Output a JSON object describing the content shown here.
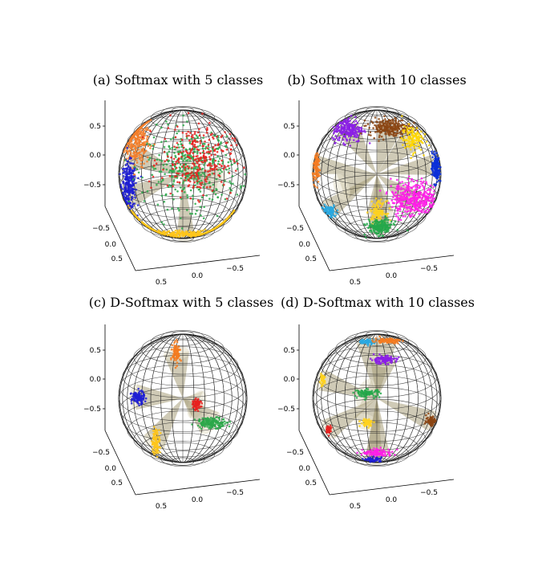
{
  "chart_data": [
    {
      "type": "scatter",
      "title": "(a) Softmax with 5 classes",
      "projection": "3d-sphere",
      "ticks": {
        "z": [
          "0.5",
          "0.0",
          "−0.5"
        ],
        "y": [
          "−0.5",
          "0.0",
          "0.5"
        ],
        "x": [
          "0.5",
          "0.0",
          "−0.5"
        ]
      },
      "cones": [
        {
          "u": -0.8,
          "v": 0.3,
          "z": 0.7
        },
        {
          "u": -0.85,
          "v": -0.35,
          "z": 0.55
        },
        {
          "u": 0.05,
          "v": -0.98,
          "z": 0.25
        },
        {
          "u": 0.15,
          "v": 0.1,
          "z": 0.98
        },
        {
          "u": 0.55,
          "v": -0.1,
          "z": 0.85
        }
      ],
      "series": [
        {
          "color": "#f37f2c",
          "center": [
            -0.72,
            0.52
          ],
          "spread": [
            0.1,
            0.2
          ],
          "n": 300,
          "arc": true
        },
        {
          "color": "#1f1fd4",
          "center": [
            -0.84,
            -0.18
          ],
          "spread": [
            0.06,
            0.18
          ],
          "n": 260,
          "arc": true
        },
        {
          "color": "#ffc61a",
          "center": [
            0.0,
            -0.93
          ],
          "spread": [
            0.55,
            0.03
          ],
          "n": 320,
          "arc": true
        },
        {
          "color": "#2ba84a",
          "center": [
            0.15,
            0.1
          ],
          "spread": [
            0.35,
            0.3
          ],
          "n": 420
        },
        {
          "color": "#e8211f",
          "center": [
            0.22,
            0.22
          ],
          "spread": [
            0.28,
            0.28
          ],
          "n": 300
        }
      ]
    },
    {
      "type": "scatter",
      "title": "(b) Softmax with 10 classes",
      "projection": "3d-sphere",
      "ticks": {
        "z": [
          "0.5",
          "0.0",
          "−0.5"
        ],
        "y": [
          "−0.5",
          "0.0",
          "0.5"
        ],
        "x": [
          "0.5",
          "0.0",
          "−0.5"
        ]
      },
      "cones": [
        {
          "u": -0.45,
          "v": 0.7,
          "z": 0.55
        },
        {
          "u": 0.2,
          "v": 0.72,
          "z": 0.66
        },
        {
          "u": 0.55,
          "v": 0.55,
          "z": 0.62
        },
        {
          "u": 0.9,
          "v": 0.15,
          "z": 0.4
        },
        {
          "u": -0.95,
          "v": 0.15,
          "z": 0.28
        },
        {
          "u": 0.6,
          "v": -0.45,
          "z": 0.66
        },
        {
          "u": -0.75,
          "v": -0.55,
          "z": 0.38
        },
        {
          "u": 0.05,
          "v": -0.6,
          "z": 0.8
        },
        {
          "u": 0.05,
          "v": -0.85,
          "z": 0.52
        },
        {
          "u": -0.55,
          "v": -0.2,
          "z": 0.81
        }
      ],
      "series": [
        {
          "color": "#8b1ee6",
          "center": [
            -0.45,
            0.7
          ],
          "spread": [
            0.12,
            0.1
          ],
          "n": 240
        },
        {
          "color": "#8b4513",
          "center": [
            0.2,
            0.73
          ],
          "spread": [
            0.16,
            0.07
          ],
          "n": 240
        },
        {
          "color": "#ffd700",
          "center": [
            0.55,
            0.55
          ],
          "spread": [
            0.08,
            0.1
          ],
          "n": 120
        },
        {
          "color": "#0a2fd8",
          "center": [
            0.92,
            0.1
          ],
          "spread": [
            0.03,
            0.12
          ],
          "n": 160
        },
        {
          "color": "#ff1fe8",
          "center": [
            0.58,
            -0.38
          ],
          "spread": [
            0.18,
            0.14
          ],
          "n": 420
        },
        {
          "color": "#f47b20",
          "center": [
            -0.94,
            0.12
          ],
          "spread": [
            0.03,
            0.12
          ],
          "n": 120
        },
        {
          "color": "#29a8e0",
          "center": [
            -0.75,
            -0.58
          ],
          "spread": [
            0.06,
            0.05
          ],
          "n": 90
        },
        {
          "color": "#ffd21f",
          "center": [
            0.02,
            -0.58
          ],
          "spread": [
            0.06,
            0.08
          ],
          "n": 120
        },
        {
          "color": "#24a84a",
          "center": [
            0.05,
            -0.82
          ],
          "spread": [
            0.1,
            0.06
          ],
          "n": 200
        },
        {
          "color": "#ffffff",
          "center": [
            -0.55,
            -0.2
          ],
          "spread": [
            0.01,
            0.01
          ],
          "n": 0
        }
      ]
    },
    {
      "type": "scatter",
      "title": "(c) D-Softmax with 5 classes",
      "projection": "3d-sphere",
      "ticks": {
        "z": [
          "0.5",
          "0.0",
          "−0.5"
        ],
        "y": [
          "−0.5",
          "0.0",
          "0.5"
        ],
        "x": [
          "0.5",
          "0.0",
          "−0.5"
        ]
      },
      "cones": [
        {
          "u": -0.1,
          "v": 0.7,
          "z": 0.7
        },
        {
          "u": -0.72,
          "v": 0.02,
          "z": 0.69
        },
        {
          "u": 0.22,
          "v": -0.1,
          "z": 0.97
        },
        {
          "u": 0.42,
          "v": -0.38,
          "z": 0.82
        },
        {
          "u": -0.45,
          "v": -0.68,
          "z": 0.58
        }
      ],
      "series": [
        {
          "color": "#f47b20",
          "center": [
            -0.1,
            0.7
          ],
          "spread": [
            0.03,
            0.08
          ],
          "n": 90
        },
        {
          "color": "#1f1fd4",
          "center": [
            -0.7,
            0.01
          ],
          "spread": [
            0.05,
            0.05
          ],
          "n": 110
        },
        {
          "color": "#e8211f",
          "center": [
            0.22,
            -0.1
          ],
          "spread": [
            0.03,
            0.04
          ],
          "n": 80
        },
        {
          "color": "#2ba84a",
          "center": [
            0.45,
            -0.38
          ],
          "spread": [
            0.12,
            0.04
          ],
          "n": 160
        },
        {
          "color": "#ffc61a",
          "center": [
            -0.42,
            -0.68
          ],
          "spread": [
            0.03,
            0.1
          ],
          "n": 110
        }
      ]
    },
    {
      "type": "scatter",
      "title": "(d) D-Softmax with 10 classes",
      "projection": "3d-sphere",
      "ticks": {
        "z": [
          "0.5",
          "0.0",
          "−0.5"
        ],
        "y": [
          "−0.5",
          "0.0",
          "0.5"
        ],
        "x": [
          "0.5",
          "0.0",
          "−0.5"
        ]
      },
      "cones": [
        {
          "u": -0.15,
          "v": 0.88,
          "z": 0.45
        },
        {
          "u": 0.15,
          "v": 0.9,
          "z": 0.4
        },
        {
          "u": 0.1,
          "v": 0.6,
          "z": 0.79
        },
        {
          "u": -0.85,
          "v": 0.28,
          "z": 0.45
        },
        {
          "u": -0.18,
          "v": 0.08,
          "z": 0.98
        },
        {
          "u": -0.15,
          "v": -0.38,
          "z": 0.91
        },
        {
          "u": 0.85,
          "v": -0.35,
          "z": 0.4
        },
        {
          "u": -0.75,
          "v": -0.48,
          "z": 0.45
        },
        {
          "u": 0.02,
          "v": -0.85,
          "z": 0.52
        },
        {
          "u": -0.05,
          "v": -0.97,
          "z": 0.24
        }
      ],
      "series": [
        {
          "color": "#29a8e0",
          "center": [
            -0.15,
            0.88
          ],
          "spread": [
            0.06,
            0.02
          ],
          "n": 70
        },
        {
          "color": "#f47b20",
          "center": [
            0.17,
            0.9
          ],
          "spread": [
            0.1,
            0.02
          ],
          "n": 90
        },
        {
          "color": "#8b1ee6",
          "center": [
            0.1,
            0.6
          ],
          "spread": [
            0.1,
            0.03
          ],
          "n": 120
        },
        {
          "color": "#ffd21f",
          "center": [
            -0.85,
            0.28
          ],
          "spread": [
            0.02,
            0.04
          ],
          "n": 40
        },
        {
          "color": "#24a84a",
          "center": [
            -0.15,
            0.08
          ],
          "spread": [
            0.1,
            0.03
          ],
          "n": 90
        },
        {
          "color": "#ffd21f",
          "center": [
            -0.15,
            -0.38
          ],
          "spread": [
            0.05,
            0.03
          ],
          "n": 60
        },
        {
          "color": "#8b4513",
          "center": [
            0.85,
            -0.35
          ],
          "spread": [
            0.04,
            0.04
          ],
          "n": 80
        },
        {
          "color": "#e8211f",
          "center": [
            -0.75,
            -0.48
          ],
          "spread": [
            0.02,
            0.03
          ],
          "n": 40
        },
        {
          "color": "#ff1fe8",
          "center": [
            0.02,
            -0.85
          ],
          "spread": [
            0.12,
            0.03
          ],
          "n": 110
        },
        {
          "color": "#1f1fd4",
          "center": [
            -0.04,
            -0.96
          ],
          "spread": [
            0.06,
            0.02
          ],
          "n": 60
        }
      ]
    }
  ]
}
